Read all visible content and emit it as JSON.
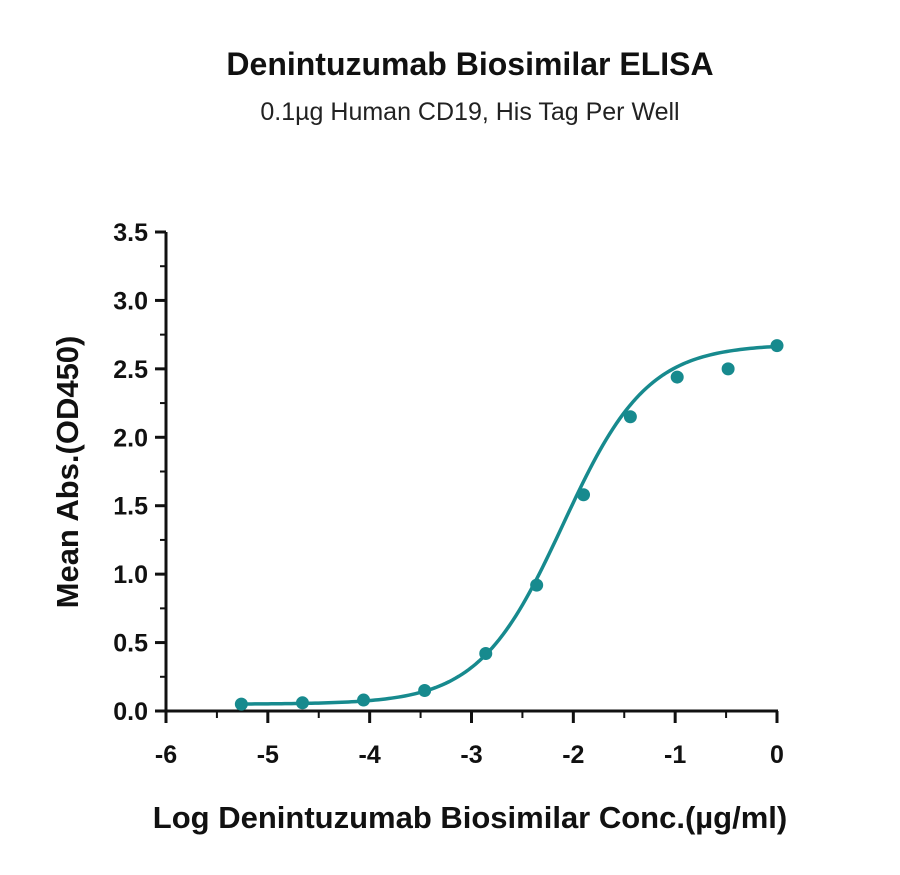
{
  "chart_data": {
    "type": "scatter",
    "title": "Denintuzumab Biosimilar ELISA",
    "subtitle": "0.1µg Human CD19, His Tag Per Well",
    "xlabel": "Log Denintuzumab Biosimilar Conc.(µg/ml)",
    "ylabel": "Mean Abs.(OD450)",
    "xlim": [
      -6,
      0
    ],
    "ylim": [
      0,
      3.5
    ],
    "x_ticks": [
      "-6",
      "-5",
      "-4",
      "-3",
      "-2",
      "-1",
      "0"
    ],
    "y_ticks": [
      "0.0",
      "0.5",
      "1.0",
      "1.5",
      "2.0",
      "2.5",
      "3.0",
      "3.5"
    ],
    "grid": false,
    "series": [
      {
        "color": "#178a8e",
        "points": [
          {
            "x": -5.26,
            "y": 0.05
          },
          {
            "x": -4.66,
            "y": 0.06
          },
          {
            "x": -4.06,
            "y": 0.08
          },
          {
            "x": -3.46,
            "y": 0.15
          },
          {
            "x": -2.86,
            "y": 0.42
          },
          {
            "x": -2.36,
            "y": 0.92
          },
          {
            "x": -1.9,
            "y": 1.58
          },
          {
            "x": -1.44,
            "y": 2.15
          },
          {
            "x": -0.98,
            "y": 2.44
          },
          {
            "x": -0.48,
            "y": 2.5
          },
          {
            "x": 0.0,
            "y": 2.67
          }
        ],
        "fit": {
          "model": "4PL",
          "bottom": 0.05,
          "top": 2.68,
          "logEC50": -2.1,
          "hill": 1.05
        }
      }
    ]
  }
}
